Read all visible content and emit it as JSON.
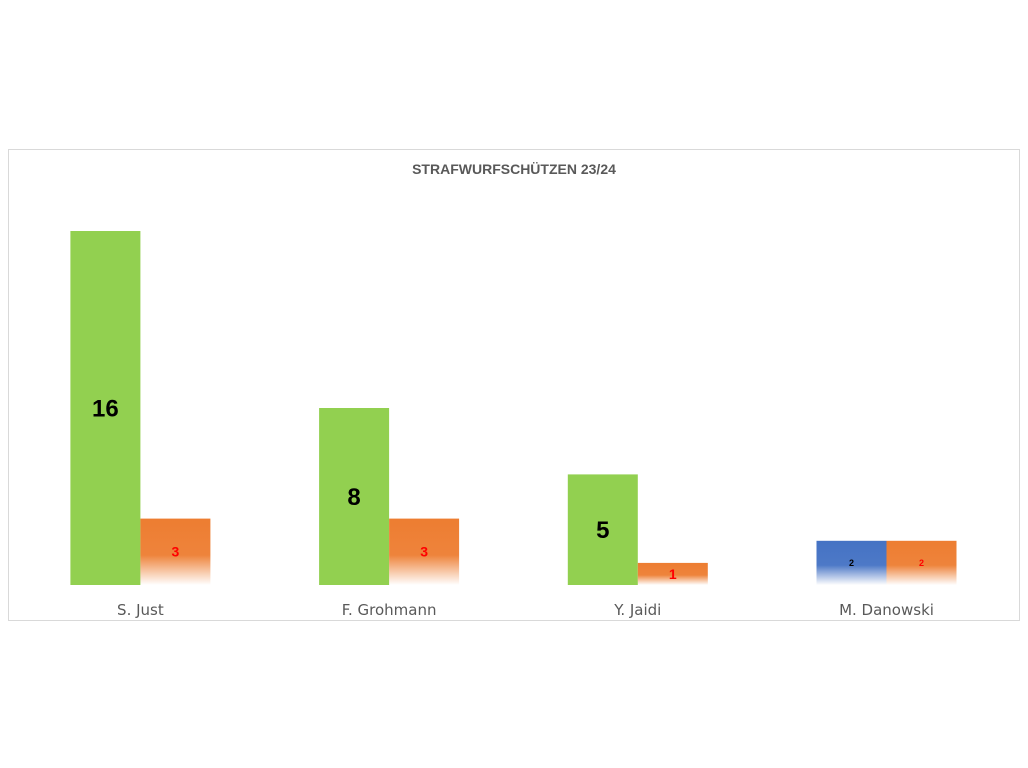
{
  "chart_data": {
    "type": "bar",
    "title": "STRAFWURFSCHÜTZEN 23/24",
    "categories": [
      "S. Just",
      "F. Grohmann",
      "Y. Jaidi",
      "M. Danowski"
    ],
    "ylim": [
      0,
      16
    ],
    "grid": false,
    "legend": "none",
    "series": [
      {
        "values": [
          16,
          8,
          5,
          2
        ],
        "bar_colors": [
          "#92d050",
          "#92d050",
          "#92d050",
          "#4472c4"
        ],
        "label_colors": [
          "#000000",
          "#000000",
          "#000000",
          "#000000"
        ]
      },
      {
        "values": [
          3,
          3,
          1,
          2
        ],
        "bar_colors": [
          "#ed7d31",
          "#ed7d31",
          "#ed7d31",
          "#ed7d31"
        ],
        "label_colors": [
          "#ff0000",
          "#ff0000",
          "#ff0000",
          "#ff0000"
        ]
      }
    ],
    "colors": {
      "title": "#595959",
      "axis_text": "#595959",
      "border": "#d9d9d9"
    }
  }
}
